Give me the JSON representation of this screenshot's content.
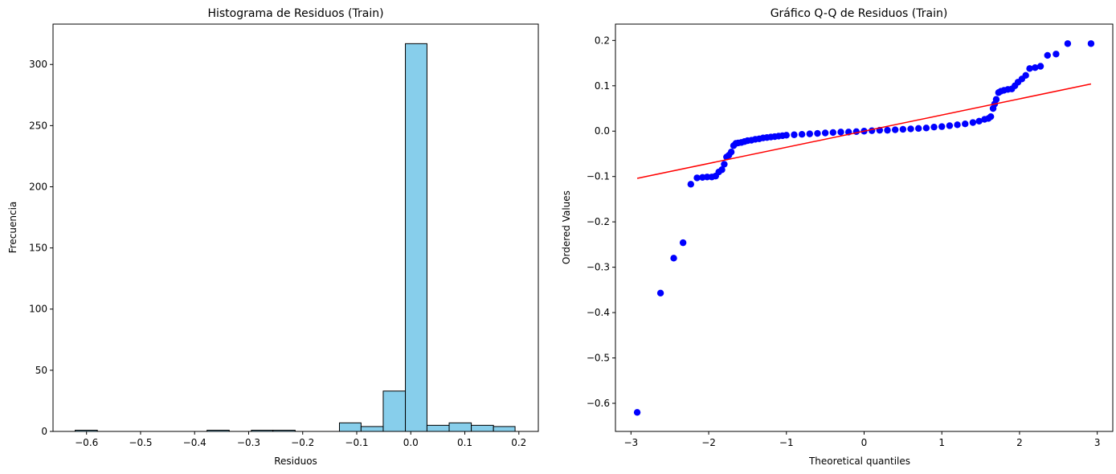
{
  "chart_data": [
    {
      "type": "bar",
      "title": "Histograma de Residuos (Train)",
      "xlabel": "Residuos",
      "ylabel": "Frecuencia",
      "xlim": [
        -0.662,
        0.236
      ],
      "ylim": [
        0,
        333
      ],
      "xticks": [
        -0.6,
        -0.5,
        -0.4,
        -0.3,
        -0.2,
        -0.1,
        0.0,
        0.1,
        0.2
      ],
      "xtick_labels": [
        "−0.6",
        "−0.5",
        "−0.4",
        "−0.3",
        "−0.2",
        "−0.1",
        "0.0",
        "0.1",
        "0.2"
      ],
      "yticks": [
        0,
        50,
        100,
        150,
        200,
        250,
        300
      ],
      "ytick_labels": [
        "0",
        "50",
        "100",
        "150",
        "200",
        "250",
        "300"
      ],
      "bin_edges": [
        -0.621,
        -0.58,
        -0.54,
        -0.499,
        -0.458,
        -0.418,
        -0.377,
        -0.336,
        -0.295,
        -0.255,
        -0.214,
        -0.173,
        -0.132,
        -0.092,
        -0.051,
        -0.01,
        0.03,
        0.071,
        0.112,
        0.153,
        0.193
      ],
      "counts": [
        1,
        0,
        0,
        0,
        0,
        0,
        1,
        0,
        1,
        1,
        0,
        0,
        7,
        4,
        33,
        317,
        5,
        7,
        5,
        4
      ],
      "fill_color": "#87ceeb",
      "edge_color": "#000000"
    },
    {
      "type": "scatter",
      "title": "Gráfico Q-Q de Residuos (Train)",
      "xlabel": "Theoretical quantiles",
      "ylabel": "Ordered Values",
      "xlim": [
        -3.2,
        3.2
      ],
      "ylim": [
        -0.662,
        0.236
      ],
      "xticks": [
        -3,
        -2,
        -1,
        0,
        1,
        2,
        3
      ],
      "xtick_labels": [
        "−3",
        "−2",
        "−1",
        "0",
        "1",
        "2",
        "3"
      ],
      "yticks": [
        -0.6,
        -0.5,
        -0.4,
        -0.3,
        -0.2,
        -0.1,
        0.0,
        0.1,
        0.2
      ],
      "ytick_labels": [
        "−0.6",
        "−0.5",
        "−0.4",
        "−0.3",
        "−0.2",
        "−0.1",
        "0.0",
        "0.1",
        "0.2"
      ],
      "points": [
        [
          -2.92,
          -0.62
        ],
        [
          -2.62,
          -0.357
        ],
        [
          -2.45,
          -0.28
        ],
        [
          -2.33,
          -0.246
        ],
        [
          -2.23,
          -0.117
        ],
        [
          -2.15,
          -0.103
        ],
        [
          -2.08,
          -0.102
        ],
        [
          -2.02,
          -0.101
        ],
        [
          -1.96,
          -0.101
        ],
        [
          -1.91,
          -0.099
        ],
        [
          -1.87,
          -0.09
        ],
        [
          -1.83,
          -0.085
        ],
        [
          -1.8,
          -0.073
        ],
        [
          -1.77,
          -0.057
        ],
        [
          -1.74,
          -0.053
        ],
        [
          -1.71,
          -0.046
        ],
        [
          -1.68,
          -0.032
        ],
        [
          -1.65,
          -0.027
        ],
        [
          -1.62,
          -0.026
        ],
        [
          -1.58,
          -0.025
        ],
        [
          -1.54,
          -0.023
        ],
        [
          -1.5,
          -0.021
        ],
        [
          -1.45,
          -0.02
        ],
        [
          -1.4,
          -0.018
        ],
        [
          -1.35,
          -0.017
        ],
        [
          -1.3,
          -0.015
        ],
        [
          -1.25,
          -0.014
        ],
        [
          -1.2,
          -0.013
        ],
        [
          -1.15,
          -0.012
        ],
        [
          -1.1,
          -0.011
        ],
        [
          -1.05,
          -0.01
        ],
        [
          -1.0,
          -0.009
        ],
        [
          -0.9,
          -0.008
        ],
        [
          -0.8,
          -0.007
        ],
        [
          -0.7,
          -0.006
        ],
        [
          -0.6,
          -0.005
        ],
        [
          -0.5,
          -0.004
        ],
        [
          -0.4,
          -0.003
        ],
        [
          -0.3,
          -0.002
        ],
        [
          -0.2,
          -0.002
        ],
        [
          -0.1,
          -0.001
        ],
        [
          0.0,
          0.0
        ],
        [
          0.1,
          0.001
        ],
        [
          0.2,
          0.002
        ],
        [
          0.3,
          0.002
        ],
        [
          0.4,
          0.003
        ],
        [
          0.5,
          0.004
        ],
        [
          0.6,
          0.005
        ],
        [
          0.7,
          0.006
        ],
        [
          0.8,
          0.007
        ],
        [
          0.9,
          0.009
        ],
        [
          1.0,
          0.01
        ],
        [
          1.1,
          0.012
        ],
        [
          1.2,
          0.014
        ],
        [
          1.3,
          0.016
        ],
        [
          1.4,
          0.019
        ],
        [
          1.48,
          0.022
        ],
        [
          1.55,
          0.026
        ],
        [
          1.6,
          0.028
        ],
        [
          1.63,
          0.032
        ],
        [
          1.66,
          0.05
        ],
        [
          1.68,
          0.06
        ],
        [
          1.7,
          0.07
        ],
        [
          1.73,
          0.085
        ],
        [
          1.76,
          0.088
        ],
        [
          1.8,
          0.09
        ],
        [
          1.85,
          0.092
        ],
        [
          1.9,
          0.093
        ],
        [
          1.94,
          0.1
        ],
        [
          1.98,
          0.108
        ],
        [
          2.03,
          0.115
        ],
        [
          2.08,
          0.123
        ],
        [
          2.13,
          0.138
        ],
        [
          2.2,
          0.14
        ],
        [
          2.27,
          0.143
        ],
        [
          2.36,
          0.167
        ],
        [
          2.47,
          0.17
        ],
        [
          2.62,
          0.193
        ],
        [
          2.92,
          0.193
        ]
      ],
      "fit_line": {
        "x": [
          -2.92,
          2.92
        ],
        "y": [
          -0.104,
          0.104
        ]
      },
      "point_color": "#0000ff",
      "line_color": "#ff0000"
    }
  ]
}
